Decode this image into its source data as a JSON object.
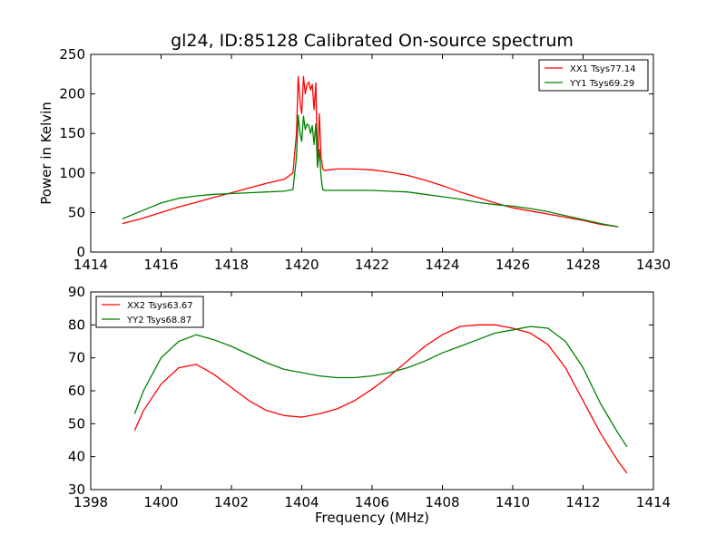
{
  "chart_data": [
    {
      "type": "line",
      "title": "gl24, ID:85128 Calibrated On-source spectrum",
      "xlabel": "",
      "ylabel": "Power in Kelvin",
      "xlim": [
        1414,
        1430
      ],
      "ylim": [
        0,
        250
      ],
      "xticks": [
        1414,
        1416,
        1418,
        1420,
        1422,
        1424,
        1426,
        1428,
        1430
      ],
      "yticks": [
        0,
        50,
        100,
        150,
        200,
        250
      ],
      "legend_position": "top-right",
      "series": [
        {
          "name": "XX1 Tsys77.14",
          "color": "#ff0000",
          "x": [
            1414.9,
            1415.5,
            1416.0,
            1416.5,
            1417.0,
            1417.5,
            1418.0,
            1418.5,
            1419.0,
            1419.5,
            1419.75,
            1419.85,
            1419.9,
            1419.95,
            1420.0,
            1420.05,
            1420.1,
            1420.15,
            1420.2,
            1420.25,
            1420.3,
            1420.35,
            1420.4,
            1420.45,
            1420.5,
            1420.55,
            1420.6,
            1420.65,
            1420.75,
            1421.0,
            1421.5,
            1422.0,
            1422.5,
            1423.0,
            1423.5,
            1424.0,
            1424.5,
            1425.0,
            1425.5,
            1426.0,
            1426.5,
            1427.0,
            1427.5,
            1428.0,
            1428.5,
            1429.0
          ],
          "values": [
            36,
            43,
            50,
            57,
            63,
            69,
            75,
            81,
            87,
            92,
            100,
            150,
            222,
            190,
            175,
            222,
            200,
            212,
            215,
            205,
            212,
            180,
            214,
            110,
            175,
            120,
            105,
            103,
            104,
            105,
            105,
            104,
            101,
            97,
            91,
            84,
            76,
            69,
            62,
            56,
            52,
            48,
            44,
            40,
            35,
            32
          ]
        },
        {
          "name": "YY1 Tsys69.29",
          "color": "#008000",
          "x": [
            1414.9,
            1415.5,
            1416.0,
            1416.5,
            1417.0,
            1417.5,
            1418.0,
            1418.5,
            1419.0,
            1419.5,
            1419.75,
            1419.85,
            1419.9,
            1419.95,
            1420.0,
            1420.05,
            1420.1,
            1420.15,
            1420.2,
            1420.25,
            1420.3,
            1420.35,
            1420.4,
            1420.45,
            1420.5,
            1420.55,
            1420.6,
            1420.65,
            1420.75,
            1421.0,
            1421.5,
            1422.0,
            1422.5,
            1423.0,
            1423.5,
            1424.0,
            1424.5,
            1425.0,
            1425.5,
            1426.0,
            1426.5,
            1427.0,
            1427.5,
            1428.0,
            1428.5,
            1429.0
          ],
          "values": [
            42,
            53,
            62,
            68,
            71,
            73,
            74,
            75,
            76,
            77,
            79,
            120,
            173,
            150,
            140,
            172,
            155,
            162,
            160,
            150,
            160,
            136,
            162,
            107,
            130,
            95,
            79,
            78,
            78,
            78,
            78,
            78,
            77,
            76,
            73,
            70,
            67,
            63,
            60,
            58,
            55,
            51,
            46,
            41,
            36,
            32
          ]
        }
      ]
    },
    {
      "type": "line",
      "title": "",
      "xlabel": "Frequency (MHz)",
      "ylabel": "",
      "xlim": [
        1398,
        1414
      ],
      "ylim": [
        30,
        90
      ],
      "xticks": [
        1398,
        1400,
        1402,
        1404,
        1406,
        1408,
        1410,
        1412,
        1414
      ],
      "yticks": [
        30,
        40,
        50,
        60,
        70,
        80,
        90
      ],
      "legend_position": "top-left",
      "series": [
        {
          "name": "XX2 Tsys63.67",
          "color": "#ff0000",
          "x": [
            1399.25,
            1399.5,
            1400.0,
            1400.5,
            1401.0,
            1401.5,
            1402.0,
            1402.5,
            1403.0,
            1403.5,
            1404.0,
            1404.5,
            1405.0,
            1405.5,
            1406.0,
            1406.5,
            1407.0,
            1407.5,
            1408.0,
            1408.5,
            1409.0,
            1409.5,
            1410.0,
            1410.5,
            1411.0,
            1411.5,
            1412.0,
            1412.5,
            1413.0,
            1413.25
          ],
          "values": [
            48,
            54,
            62,
            67,
            68,
            65,
            61,
            57,
            54,
            52.5,
            52,
            53,
            54.5,
            57,
            60.5,
            64.5,
            69,
            73.5,
            77,
            79.5,
            80,
            80,
            79,
            77.5,
            74,
            67,
            57,
            47,
            38.5,
            35
          ]
        },
        {
          "name": "YY2 Tsys68.87",
          "color": "#008000",
          "x": [
            1399.25,
            1399.5,
            1400.0,
            1400.5,
            1401.0,
            1401.5,
            1402.0,
            1402.5,
            1403.0,
            1403.5,
            1404.0,
            1404.5,
            1405.0,
            1405.5,
            1406.0,
            1406.5,
            1407.0,
            1407.5,
            1408.0,
            1408.5,
            1409.0,
            1409.5,
            1410.0,
            1410.5,
            1411.0,
            1411.5,
            1412.0,
            1412.5,
            1413.0,
            1413.25
          ],
          "values": [
            53,
            60,
            70,
            75,
            77,
            75.5,
            73.5,
            71,
            68.5,
            66.5,
            65.5,
            64.5,
            64,
            64,
            64.5,
            65.5,
            67,
            69,
            71.5,
            73.5,
            75.5,
            77.5,
            78.5,
            79.5,
            79,
            75,
            67,
            56,
            47,
            43
          ]
        }
      ]
    }
  ]
}
